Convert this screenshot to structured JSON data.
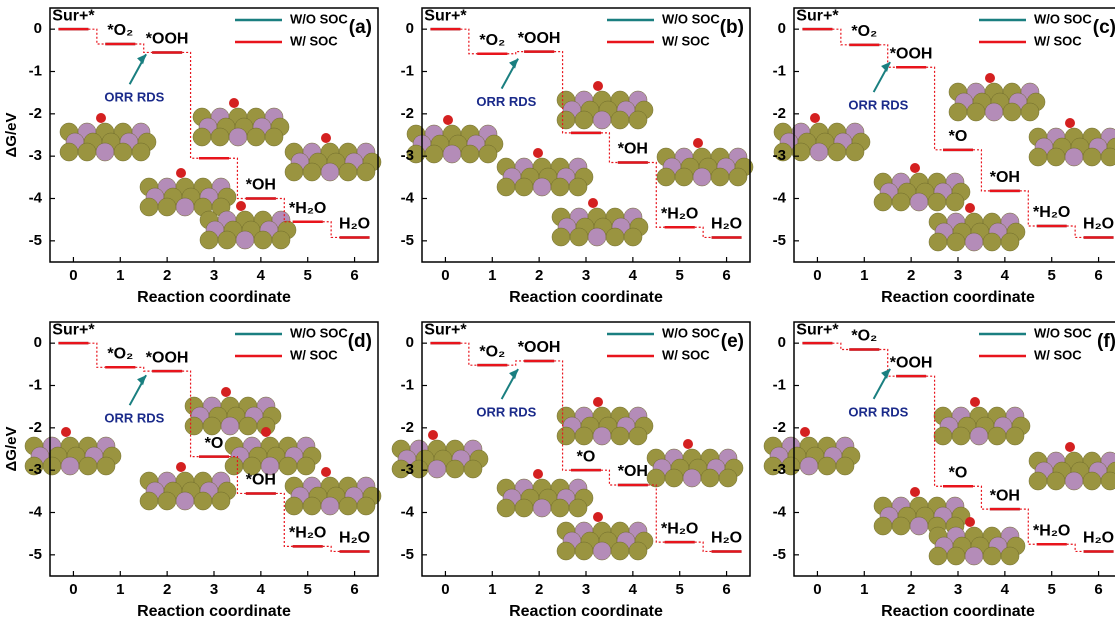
{
  "chart_data": [
    {
      "type": "step",
      "panel_label": "(a)",
      "ylabel": "ΔG/eV",
      "xlabel": "Reaction coordinate",
      "annotation": "ORR RDS",
      "categories": [
        "0",
        "1",
        "2",
        "3",
        "4",
        "5",
        "6"
      ],
      "step_labels": [
        "Sur+*",
        "*O₂",
        "*OOH",
        null,
        "*OH",
        "*H₂O",
        "H₂O"
      ],
      "series": [
        {
          "name": "W/O SOC",
          "color": "#1a7f80",
          "values": [
            0,
            -0.35,
            -0.55,
            -3.05,
            -4.0,
            -4.55,
            -4.92
          ]
        },
        {
          "name": "W/ SOC",
          "color": "#e8141c",
          "values": [
            0,
            -0.35,
            -0.55,
            -3.05,
            -4.0,
            -4.55,
            -4.92
          ]
        }
      ],
      "xlim": [
        -0.5,
        6.5
      ],
      "ylim": [
        -5.5,
        0.5
      ],
      "yticks": [
        0,
        -1,
        -2,
        -3,
        -4,
        -5
      ]
    },
    {
      "type": "step",
      "panel_label": "(b)",
      "xlabel": "Reaction coordinate",
      "annotation": "ORR RDS",
      "categories": [
        "0",
        "1",
        "2",
        "3",
        "4",
        "5",
        "6"
      ],
      "step_labels": [
        "Sur+*",
        "*O₂",
        "*OOH",
        null,
        "*OH",
        "*H₂O",
        "H₂O"
      ],
      "series": [
        {
          "name": "W/O SOC",
          "color": "#1a7f80",
          "values": [
            0,
            -0.58,
            -0.53,
            -2.45,
            -3.15,
            -4.68,
            -4.92
          ]
        },
        {
          "name": "W/ SOC",
          "color": "#e8141c",
          "values": [
            0,
            -0.58,
            -0.53,
            -2.45,
            -3.15,
            -4.68,
            -4.92
          ]
        }
      ],
      "xlim": [
        -0.5,
        6.5
      ],
      "ylim": [
        -5.5,
        0.5
      ],
      "yticks": [
        0,
        -1,
        -2,
        -3,
        -4,
        -5
      ]
    },
    {
      "type": "step",
      "panel_label": "(c)",
      "xlabel": "Reaction coordinate",
      "annotation": "ORR RDS",
      "categories": [
        "0",
        "1",
        "2",
        "3",
        "4",
        "5",
        "6"
      ],
      "step_labels": [
        "Sur+*",
        "*O₂",
        "*OOH",
        "*O",
        "*OH",
        "*H₂O",
        "H₂O"
      ],
      "series": [
        {
          "name": "W/O SOC",
          "color": "#1a7f80",
          "values": [
            0,
            -0.37,
            -0.9,
            -2.85,
            -3.82,
            -4.65,
            -4.92
          ]
        },
        {
          "name": "W/ SOC",
          "color": "#e8141c",
          "values": [
            0,
            -0.37,
            -0.9,
            -2.85,
            -3.82,
            -4.65,
            -4.92
          ]
        }
      ],
      "xlim": [
        -0.5,
        6.5
      ],
      "ylim": [
        -5.5,
        0.5
      ],
      "yticks": [
        0,
        -1,
        -2,
        -3,
        -4,
        -5
      ]
    },
    {
      "type": "step",
      "panel_label": "(d)",
      "ylabel": "ΔG/eV",
      "xlabel": "Reaction coordinate",
      "annotation": "ORR RDS",
      "categories": [
        "0",
        "1",
        "2",
        "3",
        "4",
        "5",
        "6"
      ],
      "step_labels": [
        "Sur+*",
        "*O₂",
        "*OOH",
        "*O",
        "*OH",
        "*H₂O",
        "H₂O"
      ],
      "series": [
        {
          "name": "W/O SOC",
          "color": "#1a7f80",
          "values": [
            0,
            -0.57,
            -0.66,
            -2.68,
            -3.55,
            -4.8,
            -4.92
          ]
        },
        {
          "name": "W/ SOC",
          "color": "#e8141c",
          "values": [
            0,
            -0.57,
            -0.66,
            -2.68,
            -3.55,
            -4.8,
            -4.92
          ]
        }
      ],
      "xlim": [
        -0.5,
        6.5
      ],
      "ylim": [
        -5.5,
        0.5
      ],
      "yticks": [
        0,
        -1,
        -2,
        -3,
        -4,
        -5
      ]
    },
    {
      "type": "step",
      "panel_label": "(e)",
      "xlabel": "Reaction coordinate",
      "annotation": "ORR RDS",
      "categories": [
        "0",
        "1",
        "2",
        "3",
        "4",
        "5",
        "6"
      ],
      "step_labels": [
        "Sur+*",
        "*O₂",
        "*OOH",
        "*O",
        "*OH",
        "*H₂O",
        "H₂O"
      ],
      "series": [
        {
          "name": "W/O SOC",
          "color": "#1a7f80",
          "values": [
            0,
            -0.52,
            -0.42,
            -3.0,
            -3.35,
            -4.7,
            -4.92
          ]
        },
        {
          "name": "W/ SOC",
          "color": "#e8141c",
          "values": [
            0,
            -0.52,
            -0.42,
            -3.0,
            -3.35,
            -4.7,
            -4.92
          ]
        }
      ],
      "xlim": [
        -0.5,
        6.5
      ],
      "ylim": [
        -5.5,
        0.5
      ],
      "yticks": [
        0,
        -1,
        -2,
        -3,
        -4,
        -5
      ]
    },
    {
      "type": "step",
      "panel_label": "(f)",
      "xlabel": "Reaction coordinate",
      "annotation": "ORR RDS",
      "categories": [
        "0",
        "1",
        "2",
        "3",
        "4",
        "5",
        "6"
      ],
      "step_labels": [
        "Sur+*",
        "*O₂",
        "*OOH",
        "*O",
        "*OH",
        "*H₂O",
        "H₂O"
      ],
      "series": [
        {
          "name": "W/O SOC",
          "color": "#1a7f80",
          "values": [
            0,
            -0.15,
            -0.78,
            -3.38,
            -3.92,
            -4.75,
            -4.92
          ]
        },
        {
          "name": "W/ SOC",
          "color": "#e8141c",
          "values": [
            0,
            -0.15,
            -0.78,
            -3.38,
            -3.92,
            -4.75,
            -4.92
          ]
        }
      ],
      "xlim": [
        -0.5,
        6.5
      ],
      "ylim": [
        -5.5,
        0.5
      ],
      "yticks": [
        0,
        -1,
        -2,
        -3,
        -4,
        -5
      ]
    }
  ]
}
